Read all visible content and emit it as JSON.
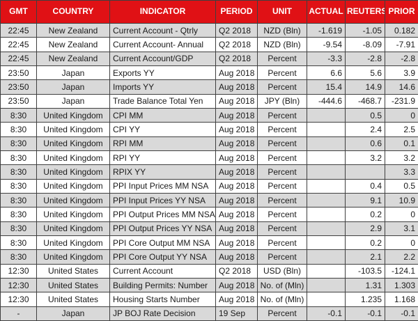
{
  "colors": {
    "header_bg": "#E01115",
    "header_text": "#FFFFFF",
    "row_stripe_bg": "#D9D9D9",
    "row_bg": "#FFFFFF",
    "border": "#3F3F3F",
    "body_text": "#1A1A1A"
  },
  "chart_data": {
    "type": "table",
    "columns": [
      "GMT",
      "COUNTRY",
      "INDICATOR",
      "PERIOD",
      "UNIT",
      "ACTUAL",
      "REUTERS POLL",
      "PRIOR"
    ],
    "rows": [
      [
        "22:45",
        "New Zealand",
        "Current Account - Qtrly",
        "Q2 2018",
        "NZD (Bln)",
        "-1.619",
        "-1.05",
        "0.182"
      ],
      [
        "22:45",
        "New Zealand",
        "Current Account- Annual",
        "Q2 2018",
        "NZD (Bln)",
        "-9.54",
        "-8.09",
        "-7.91"
      ],
      [
        "22:45",
        "New Zealand",
        "Current Account/GDP",
        "Q2 2018",
        "Percent",
        "-3.3",
        "-2.8",
        "-2.8"
      ],
      [
        "23:50",
        "Japan",
        "Exports YY",
        "Aug 2018",
        "Percent",
        "6.6",
        "5.6",
        "3.9"
      ],
      [
        "23:50",
        "Japan",
        "Imports YY",
        "Aug 2018",
        "Percent",
        "15.4",
        "14.9",
        "14.6"
      ],
      [
        "23:50",
        "Japan",
        "Trade Balance Total Yen",
        "Aug 2018",
        "JPY (Bln)",
        "-444.6",
        "-468.7",
        "-231.9"
      ],
      [
        "8:30",
        "United Kingdom",
        "CPI MM",
        "Aug 2018",
        "Percent",
        "",
        "0.5",
        "0"
      ],
      [
        "8:30",
        "United Kingdom",
        "CPI YY",
        "Aug 2018",
        "Percent",
        "",
        "2.4",
        "2.5"
      ],
      [
        "8:30",
        "United Kingdom",
        "RPI MM",
        "Aug 2018",
        "Percent",
        "",
        "0.6",
        "0.1"
      ],
      [
        "8:30",
        "United Kingdom",
        "RPI YY",
        "Aug 2018",
        "Percent",
        "",
        "3.2",
        "3.2"
      ],
      [
        "8:30",
        "United Kingdom",
        "RPIX YY",
        "Aug 2018",
        "Percent",
        "",
        "",
        "3.3"
      ],
      [
        "8:30",
        "United Kingdom",
        "PPI Input Prices MM NSA",
        "Aug 2018",
        "Percent",
        "",
        "0.4",
        "0.5"
      ],
      [
        "8:30",
        "United Kingdom",
        "PPI Input Prices YY NSA",
        "Aug 2018",
        "Percent",
        "",
        "9.1",
        "10.9"
      ],
      [
        "8:30",
        "United Kingdom",
        "PPI Output Prices MM NSA",
        "Aug 2018",
        "Percent",
        "",
        "0.2",
        "0"
      ],
      [
        "8:30",
        "United Kingdom",
        "PPI Output Prices YY NSA",
        "Aug 2018",
        "Percent",
        "",
        "2.9",
        "3.1"
      ],
      [
        "8:30",
        "United Kingdom",
        "PPI Core Output MM NSA",
        "Aug 2018",
        "Percent",
        "",
        "0.2",
        "0"
      ],
      [
        "8:30",
        "United Kingdom",
        "PPI Core Output YY NSA",
        "Aug 2018",
        "Percent",
        "",
        "2.1",
        "2.2"
      ],
      [
        "12:30",
        "United States",
        "Current Account",
        "Q2 2018",
        "USD (Bln)",
        "",
        "-103.5",
        "-124.1"
      ],
      [
        "12:30",
        "United States",
        "Building Permits: Number",
        "Aug 2018",
        "No. of (Mln)",
        "",
        "1.31",
        "1.303"
      ],
      [
        "12:30",
        "United States",
        "Housing Starts Number",
        "Aug 2018",
        "No. of (Mln)",
        "",
        "1.235",
        "1.168"
      ],
      [
        "-",
        "Japan",
        "JP BOJ Rate Decision",
        "19 Sep",
        "Percent",
        "-0.1",
        "-0.1",
        "-0.1"
      ]
    ]
  }
}
